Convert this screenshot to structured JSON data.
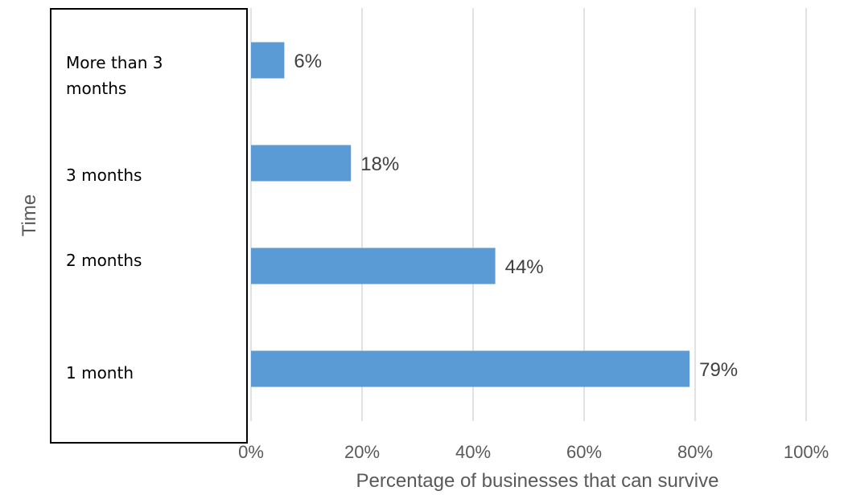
{
  "chart_data": {
    "type": "bar",
    "orientation": "horizontal",
    "categories": [
      "More than 3 months",
      "3 months",
      "2 months",
      "1 month"
    ],
    "category_display": [
      "More than 3\nmonths",
      "3 months",
      "2 months",
      "1 month"
    ],
    "values": [
      6,
      18,
      44,
      79
    ],
    "data_labels": [
      "6%",
      "18%",
      "44%",
      "79%"
    ],
    "xlabel": "Percentage of businesses that can survive",
    "ylabel": "Time",
    "xlim": [
      0,
      100
    ],
    "x_ticks": [
      0,
      20,
      40,
      60,
      80,
      100
    ],
    "x_tick_labels": [
      "0%",
      "20%",
      "40%",
      "60%",
      "80%",
      "100%"
    ],
    "grid": true,
    "legend": "none",
    "bar_color": "#5B9BD5",
    "gridline_color": "#D9D9D9"
  }
}
